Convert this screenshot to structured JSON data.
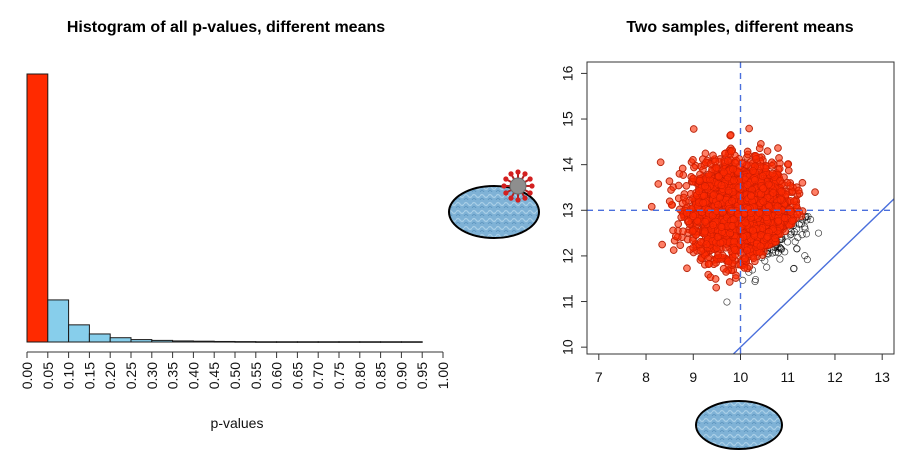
{
  "chart_data": [
    {
      "type": "bar",
      "title": "Histogram of all p-values, different means",
      "xlabel": "p-values",
      "ylabel": "",
      "x_ticks": [
        "0.00",
        "0.05",
        "0.10",
        "0.15",
        "0.20",
        "0.25",
        "0.30",
        "0.35",
        "0.40",
        "0.45",
        "0.50",
        "0.55",
        "0.60",
        "0.65",
        "0.70",
        "0.75",
        "0.80",
        "0.85",
        "0.90",
        "0.95",
        "1.00"
      ],
      "categories": [
        "0.00-0.05",
        "0.05-0.10",
        "0.10-0.15",
        "0.15-0.20",
        "0.20-0.25",
        "0.25-0.30",
        "0.30-0.35",
        "0.35-0.40",
        "0.40-0.45",
        "0.45-0.50",
        "0.50-0.55",
        "0.55-0.60",
        "0.60-0.65",
        "0.65-0.70",
        "0.70-0.75",
        "0.75-0.80",
        "0.80-0.85",
        "0.85-0.90",
        "0.90-0.95"
      ],
      "values": [
        1.0,
        0.157,
        0.064,
        0.03,
        0.016,
        0.009,
        0.006,
        0.004,
        0.003,
        0.002,
        0.0015,
        0.001,
        0.001,
        0.001,
        0.001,
        0.001,
        0.001,
        0.001,
        0.001
      ],
      "value_scale": "relative to tallest bar",
      "highlight_color": "#ff2a00",
      "bar_color": "#87ceeb",
      "edge_color": "#1a1a1a",
      "y_axis_shown": false
    },
    {
      "type": "scatter",
      "title": "Two samples, different means",
      "xlim": [
        6.75,
        13.25
      ],
      "ylim": [
        9.85,
        16.25
      ],
      "x_ticks": [
        "7",
        "8",
        "9",
        "10",
        "11",
        "12",
        "13"
      ],
      "y_ticks": [
        "10",
        "11",
        "12",
        "13",
        "14",
        "15",
        "16"
      ],
      "series": [
        {
          "marker": "open circle",
          "color": "#000000",
          "center": [
            10,
            13
          ],
          "sd": 0.5
        },
        {
          "marker": "filled circle",
          "color": "#ff2a00",
          "center": [
            10,
            13
          ],
          "sd": 0.5,
          "condition": "p < 0.05"
        }
      ],
      "reference_lines": {
        "vertical_x": 10,
        "horizontal_y": 13,
        "diagonal": "y = x",
        "color": "#4a6fdc"
      },
      "decorations": [
        "virus-cell-drawing",
        "cell-drawing"
      ]
    }
  ]
}
